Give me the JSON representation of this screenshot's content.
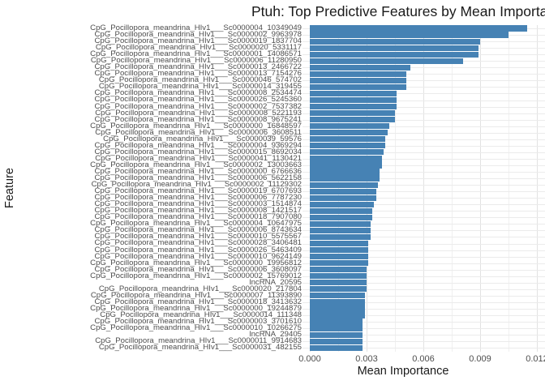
{
  "title": "Ptuh: Top Predictive Features by Mean Importance",
  "colors": {
    "bar": "#4682B4",
    "grid_major": "#e2e2e2",
    "grid_minor": "#f0f0f0",
    "axis_text": "#4d4d4d",
    "title_text": "#1a1a1a",
    "background": "#ffffff"
  },
  "chart_data": {
    "type": "bar",
    "orientation": "horizontal",
    "title": "Ptuh: Top Predictive Features by Mean Importance",
    "xlabel": "Mean Importance",
    "ylabel": "Feature",
    "xlim": [
      0,
      0.012
    ],
    "x_ticks": [
      "0.000",
      "0.003",
      "0.006",
      "0.009",
      "0.012"
    ],
    "grid": true,
    "legend": false,
    "bar_color": "#4682B4",
    "categories": [
      "CpG_Pocillopora_meandrina_HIv1___Sc0000004_10349049",
      "CpG_Pocillopora_meandrina_HIv1___Sc0000002_9963978",
      "CpG_Pocillopora_meandrina_HIv1___Sc0000019_1837704",
      "CpG_Pocillopora_meandrina_HIv1___Sc0000020_5331117",
      "CpG_Pocillopora_meandrina_HIv1___Sc0000001_14086571",
      "CpG_Pocillopora_meandrina_HIv1___Sc0000006_11280950",
      "CpG_Pocillopora_meandrina_HIv1___Sc0000013_2466722",
      "CpG_Pocillopora_meandrina_HIv1___Sc0000013_7154276",
      "CpG_Pocillopora_meandrina_HIv1___Sc0000046_574702",
      "CpG_Pocillopora_meandrina_HIv1___Sc0000014_319455",
      "CpG_Pocillopora_meandrina_HIv1___Sc0000008_2534474",
      "CpG_Pocillopora_meandrina_HIv1___Sc0000026_5245360",
      "CpG_Pocillopora_meandrina_HIv1___Sc0000002_7537382",
      "CpG_Pocillopora_meandrina_HIv1___Sc0000008_5221193",
      "CpG_Pocillopora_meandrina_HIv1___Sc0000008_9675241",
      "CpG_Pocillopora_meandrina_HIv1___Sc0000000_16848597",
      "CpG_Pocillopora_meandrina_HIv1___Sc0000006_3608511",
      "CpG_Pocillopora_meandrina_HIv1___Sc0000039_59576",
      "CpG_Pocillopora_meandrina_HIv1___Sc0000004_9369294",
      "CpG_Pocillopora_meandrina_HIv1___Sc0000015_8692034",
      "CpG_Pocillopora_meandrina_HIv1___Sc0000041_1130421",
      "CpG_Pocillopora_meandrina_HIv1___Sc0000002_13003663",
      "CpG_Pocillopora_meandrina_HIv1___Sc0000000_6766636",
      "CpG_Pocillopora_meandrina_HIv1___Sc0000006_5622158",
      "CpG_Pocillopora_meandrina_HIv1___Sc0000002_11129302",
      "CpG_Pocillopora_meandrina_HIv1___Sc0000019_6707693",
      "CpG_Pocillopora_meandrina_HIv1___Sc0000006_7787230",
      "CpG_Pocillopora_meandrina_HIv1___Sc0000003_1514874",
      "CpG_Pocillopora_meandrina_HIv1___Sc0000008_1421517",
      "CpG_Pocillopora_meandrina_HIv1___Sc0000018_7907080",
      "CpG_Pocillopora_meandrina_HIv1___Sc0000004_10647975",
      "CpG_Pocillopora_meandrina_HIv1___Sc0000006_8743634",
      "CpG_Pocillopora_meandrina_HIv1___Sc0000010_5575567",
      "CpG_Pocillopora_meandrina_HIv1___Sc0000028_3406481",
      "CpG_Pocillopora_meandrina_HIv1___Sc0000026_5463409",
      "CpG_Pocillopora_meandrina_HIv1___Sc0000010_9624149",
      "CpG_Pocillopora_meandrina_HIv1___Sc0000000_19956812",
      "CpG_Pocillopora_meandrina_HIv1___Sc0000006_3608097",
      "CpG_Pocillopora_meandrina_HIv1___Sc0000002_15769012",
      "lncRNA_20595",
      "CpG_Pocillopora_meandrina_HIv1___Sc0000020_217804",
      "CpG_Pocillopora_meandrina_HIv1___Sc0000007_11393890",
      "CpG_Pocillopora_meandrina_HIv1___Sc0000018_3413632",
      "CpG_Pocillopora_meandrina_HIv1___Sc0000000_19244879",
      "CpG_Pocillopora_meandrina_HIv1___Sc0000014_111348",
      "CpG_Pocillopora_meandrina_HIv1___Sc0000003_3701610",
      "CpG_Pocillopora_meandrina_HIv1___Sc0000010_10266275",
      "lncRNA_29405",
      "CpG_Pocillopora_meandrina_HIv1___Sc0000011_9914683",
      "CpG_Pocillopora_meandrina_HIv1___Sc0000031_482155"
    ],
    "values": [
      0.0115,
      0.0105,
      0.009,
      0.0089,
      0.0089,
      0.0081,
      0.0053,
      0.0051,
      0.0051,
      0.0051,
      0.0046,
      0.0046,
      0.0046,
      0.0045,
      0.0045,
      0.0042,
      0.0041,
      0.004,
      0.004,
      0.0039,
      0.0038,
      0.0038,
      0.0037,
      0.0037,
      0.0036,
      0.0035,
      0.0035,
      0.0034,
      0.0033,
      0.0033,
      0.0032,
      0.0032,
      0.0032,
      0.0031,
      0.0031,
      0.0031,
      0.0031,
      0.003,
      0.003,
      0.003,
      0.003,
      0.0029,
      0.0029,
      0.0029,
      0.0029,
      0.0028,
      0.0028,
      0.0028,
      0.0028,
      0.0028
    ]
  }
}
